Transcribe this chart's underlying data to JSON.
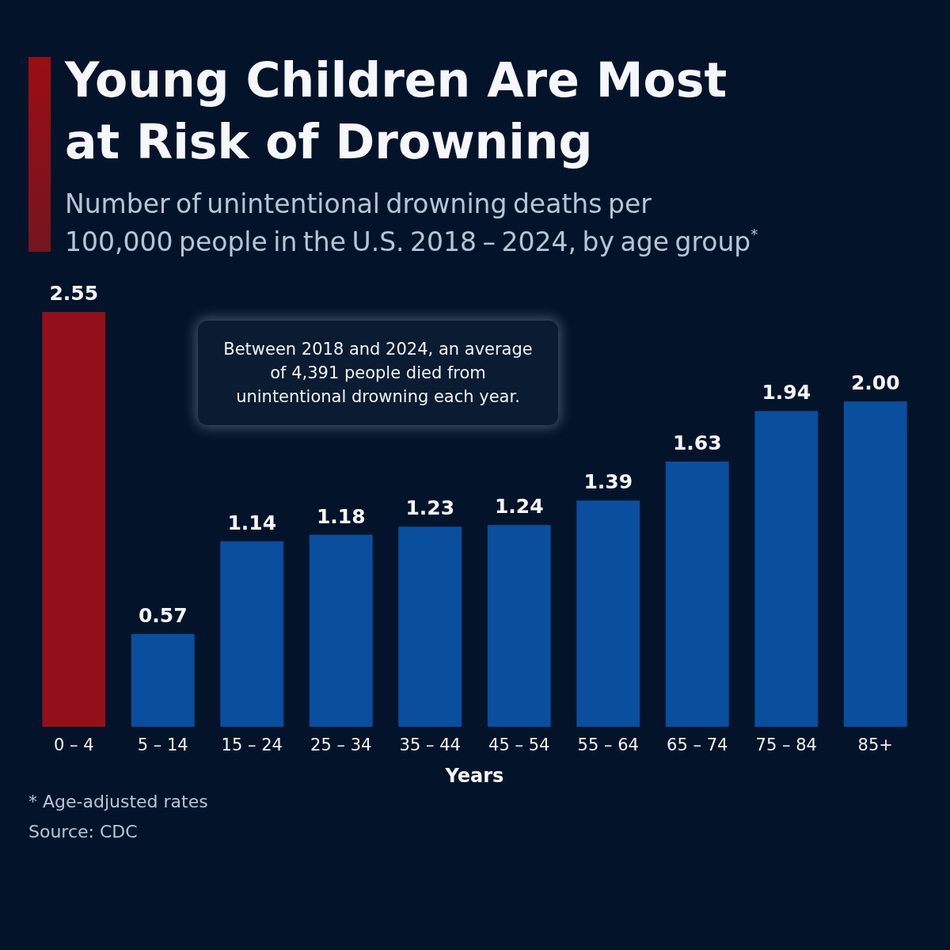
{
  "chart_data": {
    "type": "bar",
    "title": "Young Children Are Most at Risk of Drowning",
    "subtitle": "Number of unintentional drowning deaths per 100,000 people in the U.S. 2018 – 2024, by age group$^{*}$",
    "xlabel": "Years",
    "categories": [
      "0 – 4",
      "5 – 14",
      "15 – 24",
      "25 – 34",
      "35 – 44",
      "45 – 54",
      "55 – 64",
      "65 – 74",
      "75 – 84",
      "85+"
    ],
    "values": [
      2.55,
      0.57,
      1.14,
      1.18,
      1.23,
      1.24,
      1.39,
      1.63,
      1.94,
      2.0
    ],
    "value_labels": [
      "2.55",
      "0.57",
      "1.14",
      "1.18",
      "1.23",
      "1.24",
      "1.39",
      "1.63",
      "1.94",
      "2.00"
    ],
    "colors": [
      "#93101a",
      "#0a4e9e",
      "#0a4e9e",
      "#0a4e9e",
      "#0a4e9e",
      "#0a4e9e",
      "#0a4e9e",
      "#0a4e9e",
      "#0a4e9e",
      "#0a4e9e"
    ],
    "annotations": [
      "Between 2018 and 2024, an average of 4,391 people died from unintentional drowning each year.",
      "* Age-adjusted rates",
      "Source: CDC"
    ]
  }
}
